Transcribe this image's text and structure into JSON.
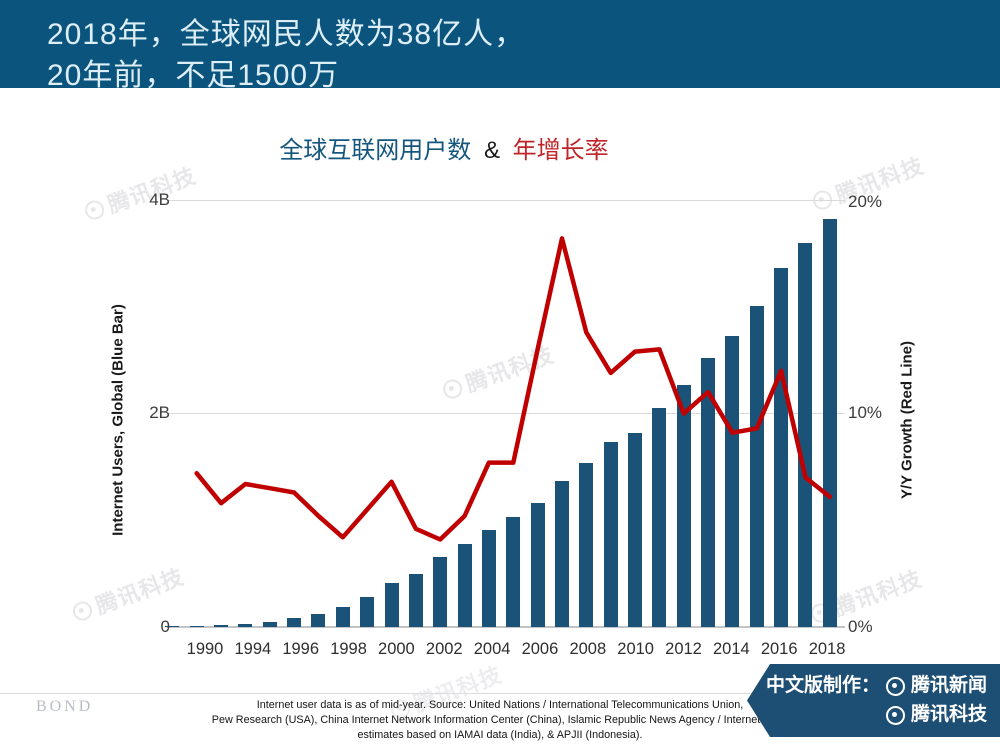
{
  "header": {
    "line1": "2018年，全球网民人数为38亿人，",
    "line2": "20年前，不足1500万",
    "bg_color": "#0a547e",
    "text_color": "#ddeef6"
  },
  "chart_title": {
    "part_blue": "全球互联网用户数",
    "part_amp": "&",
    "part_red": "年增长率",
    "blue_color": "#15567e",
    "red_color": "#bf2429"
  },
  "chart_data": {
    "type": "bar+line",
    "title": "全球互联网用户数 & 年增长率",
    "x": [
      1990,
      1991,
      1992,
      1993,
      1994,
      1995,
      1996,
      1997,
      1998,
      1999,
      2000,
      2001,
      2002,
      2003,
      2004,
      2005,
      2006,
      2007,
      2008,
      2009,
      2010,
      2011,
      2012,
      2013,
      2014,
      2015,
      2016,
      2017,
      2018
    ],
    "x_tick_labels": [
      "1990",
      "1994",
      "1996",
      "1998",
      "2000",
      "2002",
      "2004",
      "2006",
      "2008",
      "2010",
      "2012",
      "2014",
      "2016",
      "2018"
    ],
    "series": [
      {
        "name": "Internet Users, Global (Blue Bar)",
        "type": "bar",
        "axis": "left",
        "unit": "billions",
        "color": "#1b5277",
        "values": [
          0.003,
          0.005,
          0.01,
          0.015,
          0.03,
          0.05,
          0.08,
          0.12,
          0.19,
          0.28,
          0.41,
          0.5,
          0.66,
          0.78,
          0.91,
          1.03,
          1.16,
          1.37,
          1.54,
          1.73,
          1.82,
          2.05,
          2.27,
          2.52,
          2.73,
          3.01,
          3.36,
          3.6,
          3.82
        ]
      },
      {
        "name": "Y/Y Growth (Red Line)",
        "type": "line",
        "axis": "right",
        "unit": "percent",
        "color": "#c00000",
        "x_start": 1992,
        "values": [
          7.2,
          5.8,
          6.7,
          6.5,
          6.3,
          5.2,
          4.2,
          5.5,
          6.8,
          4.6,
          4.1,
          5.2,
          7.7,
          7.7,
          13.0,
          18.2,
          13.8,
          11.9,
          12.9,
          13.0,
          10.0,
          11.0,
          9.1,
          9.3,
          12.0,
          7.0,
          6.1
        ]
      }
    ],
    "left_axis": {
      "label": "Internet Users, Global (Blue Bar)",
      "ticks": [
        "4B",
        "2B",
        "0"
      ],
      "range": [
        0,
        4.2
      ]
    },
    "right_axis": {
      "label": "Y/Y Growth (Red Line)",
      "ticks": [
        "20%",
        "10%",
        "0%"
      ],
      "range": [
        0,
        20
      ]
    },
    "grid": "horizontal"
  },
  "watermark": {
    "text": "腾讯科技"
  },
  "footer": {
    "bond_logo": "BOND",
    "source_lines": [
      "Internet user data is as of mid-year.  Source: United Nations / International Telecommunications Union,",
      "Pew Research (USA), China Internet Network Information Center (China), Islamic Republic News Agency / InternetWorld",
      "estimates based on IAMAI data (India), & APJII (Indonesia)."
    ],
    "banner": {
      "bg_color": "#1d4e74",
      "prefix": "中文版制作：",
      "brand1": "腾讯新闻",
      "brand2": "腾讯科技"
    }
  }
}
